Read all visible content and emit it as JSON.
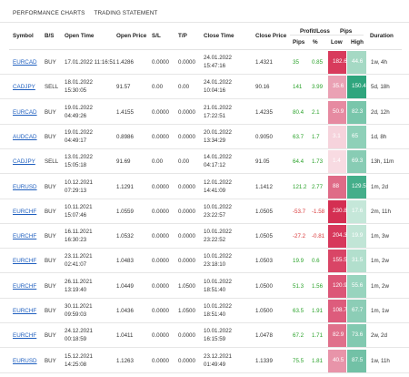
{
  "tabs": [
    "PERFORMANCE CHARTS",
    "TRADING STATEMENT"
  ],
  "headers": {
    "symbol": "Symbol",
    "bs": "B/S",
    "open_time": "Open Time",
    "open_price": "Open Price",
    "sl": "S/L",
    "tp": "T/P",
    "close_time": "Close Time",
    "close_price": "Close Price",
    "profit_loss": "Profit/Loss",
    "pips_group": "Pips",
    "pips": "Pips",
    "pct": "%",
    "low": "Low",
    "high": "High",
    "duration": "Duration"
  },
  "colors": {
    "low_box": [
      "#d83b5c",
      "#d94d70",
      "#e78aa0",
      "#f3c6d2"
    ],
    "high_box": [
      "#2fa57d",
      "#5ab99a",
      "#8fd0b9"
    ]
  },
  "rows": [
    {
      "symbol": "EURCAD",
      "bs": "BUY",
      "open_time": "17.01.2022 11:16:51",
      "open_price": "1.4286",
      "sl": "0.0000",
      "tp": "0.0000",
      "close_time_1": "24.01.2022",
      "close_time_2": "15:47:16",
      "close_price": "1.4321",
      "pips": "35",
      "pct": "0.85",
      "low": "182.6",
      "high": "44.6",
      "duration": "1w, 4h",
      "neg": false,
      "low_color": "#d83b5c",
      "high_color": "#a5d9c4"
    },
    {
      "symbol": "CADJPY",
      "bs": "SELL",
      "open_time": "18.01.2022",
      "open_time_2": "15:30:05",
      "open_price": "91.57",
      "sl": "0.00",
      "tp": "0.00",
      "close_time_1": "24.01.2022",
      "close_time_2": "10:04:16",
      "close_price": "90.16",
      "pips": "141",
      "pct": "3.99",
      "low": "35.6",
      "high": "150.4",
      "duration": "5d, 18h",
      "neg": false,
      "low_color": "#eaa1b4",
      "high_color": "#2fa57d"
    },
    {
      "symbol": "EURCAD",
      "bs": "BUY",
      "open_time": "19.01.2022",
      "open_time_2": "04:49:26",
      "open_price": "1.4155",
      "sl": "0.0000",
      "tp": "0.0000",
      "close_time_1": "21.01.2022",
      "close_time_2": "17:22:51",
      "close_price": "1.4235",
      "pips": "80.4",
      "pct": "2.1",
      "low": "50.9",
      "high": "82.3",
      "duration": "2d, 12h",
      "neg": false,
      "low_color": "#e68aa1",
      "high_color": "#79c6ab"
    },
    {
      "symbol": "AUDCAD",
      "bs": "BUY",
      "open_time": "19.01.2022",
      "open_time_2": "04:49:17",
      "open_price": "0.8986",
      "sl": "0.0000",
      "tp": "0.0000",
      "close_time_1": "20.01.2022",
      "close_time_2": "13:34:29",
      "close_price": "0.9050",
      "pips": "63.7",
      "pct": "1.7",
      "low": "3.1",
      "high": "65",
      "duration": "1d, 8h",
      "neg": false,
      "low_color": "#f6d3dc",
      "high_color": "#8ed0b8"
    },
    {
      "symbol": "CADJPY",
      "bs": "SELL",
      "open_time": "13.01.2022",
      "open_time_2": "15:05:18",
      "open_price": "91.69",
      "sl": "0.00",
      "tp": "0.00",
      "close_time_1": "14.01.2022",
      "close_time_2": "04:17:12",
      "close_price": "91.05",
      "pips": "64.4",
      "pct": "1.73",
      "low": "1.4",
      "high": "69.3",
      "duration": "13h, 11m",
      "neg": false,
      "low_color": "#f8dbe2",
      "high_color": "#88ccb4"
    },
    {
      "symbol": "EURUSD",
      "bs": "BUY",
      "open_time": "10.12.2021",
      "open_time_2": "07:29:13",
      "open_price": "1.1291",
      "sl": "0.0000",
      "tp": "0.0000",
      "close_time_1": "12.01.2022",
      "close_time_2": "14:41:09",
      "close_price": "1.1412",
      "pips": "121.2",
      "pct": "2.77",
      "low": "88",
      "high": "129.5",
      "duration": "1m, 2d",
      "neg": false,
      "low_color": "#df6b87",
      "high_color": "#44ae8a"
    },
    {
      "symbol": "EURCHF",
      "bs": "BUY",
      "open_time": "10.11.2021",
      "open_time_2": "15:07:46",
      "open_price": "1.0559",
      "sl": "0.0000",
      "tp": "0.0000",
      "close_time_1": "10.01.2022",
      "close_time_2": "23:22:57",
      "close_price": "1.0505",
      "pips": "-53.7",
      "pct": "-1.58",
      "low": "230.8",
      "high": "17.6",
      "duration": "2m, 11h",
      "neg": true,
      "low_color": "#d42f52",
      "high_color": "#c5e7d9"
    },
    {
      "symbol": "EURCHF",
      "bs": "BUY",
      "open_time": "16.11.2021",
      "open_time_2": "16:30:23",
      "open_price": "1.0532",
      "sl": "0.0000",
      "tp": "0.0000",
      "close_time_1": "10.01.2022",
      "close_time_2": "23:22:52",
      "close_price": "1.0505",
      "pips": "-27.2",
      "pct": "-0.81",
      "low": "204.3",
      "high": "19.9",
      "duration": "1m, 3w",
      "neg": true,
      "low_color": "#d7385b",
      "high_color": "#c1e5d6"
    },
    {
      "symbol": "EURCHF",
      "bs": "BUY",
      "open_time": "23.11.2021",
      "open_time_2": "02:41:07",
      "open_price": "1.0483",
      "sl": "0.0000",
      "tp": "0.0000",
      "close_time_1": "10.01.2022",
      "close_time_2": "23:18:10",
      "close_price": "1.0503",
      "pips": "19.9",
      "pct": "0.6",
      "low": "155.5",
      "high": "31.5",
      "duration": "1m, 2w",
      "neg": false,
      "low_color": "#d94566",
      "high_color": "#b2dfcd"
    },
    {
      "symbol": "EURCHF",
      "bs": "BUY",
      "open_time": "26.11.2021",
      "open_time_2": "13:19:40",
      "open_price": "1.0449",
      "sl": "0.0000",
      "tp": "1.0500",
      "close_time_1": "10.01.2022",
      "close_time_2": "18:51:40",
      "close_price": "1.0500",
      "pips": "51.3",
      "pct": "1.56",
      "low": "120.9",
      "high": "55.6",
      "duration": "1m, 2w",
      "neg": false,
      "low_color": "#dc5677",
      "high_color": "#98d4be"
    },
    {
      "symbol": "EURCHF",
      "bs": "BUY",
      "open_time": "30.11.2021",
      "open_time_2": "09:59:03",
      "open_price": "1.0436",
      "sl": "0.0000",
      "tp": "1.0500",
      "close_time_1": "10.01.2022",
      "close_time_2": "18:51:40",
      "close_price": "1.0500",
      "pips": "63.5",
      "pct": "1.91",
      "low": "108.7",
      "high": "67.7",
      "duration": "1m, 1w",
      "neg": false,
      "low_color": "#dd5c7c",
      "high_color": "#8ccdb6"
    },
    {
      "symbol": "EURCHF",
      "bs": "BUY",
      "open_time": "24.12.2021",
      "open_time_2": "00:18:59",
      "open_price": "1.0411",
      "sl": "0.0000",
      "tp": "0.0000",
      "close_time_1": "10.01.2022",
      "close_time_2": "16:15:59",
      "close_price": "1.0478",
      "pips": "67.2",
      "pct": "1.71",
      "low": "82.9",
      "high": "73.6",
      "duration": "2w, 2d",
      "neg": false,
      "low_color": "#e0708b",
      "high_color": "#82c9b0"
    },
    {
      "symbol": "EURUSD",
      "bs": "BUY",
      "open_time": "15.12.2021",
      "open_time_2": "14:25:08",
      "open_price": "1.1263",
      "sl": "0.0000",
      "tp": "0.0000",
      "close_time_1": "23.12.2021",
      "close_time_2": "01:49:49",
      "close_price": "1.1339",
      "pips": "75.5",
      "pct": "1.81",
      "low": "40.5",
      "high": "87.5",
      "duration": "1w, 11h",
      "neg": false,
      "low_color": "#e894a9",
      "high_color": "#72c1a6"
    }
  ]
}
